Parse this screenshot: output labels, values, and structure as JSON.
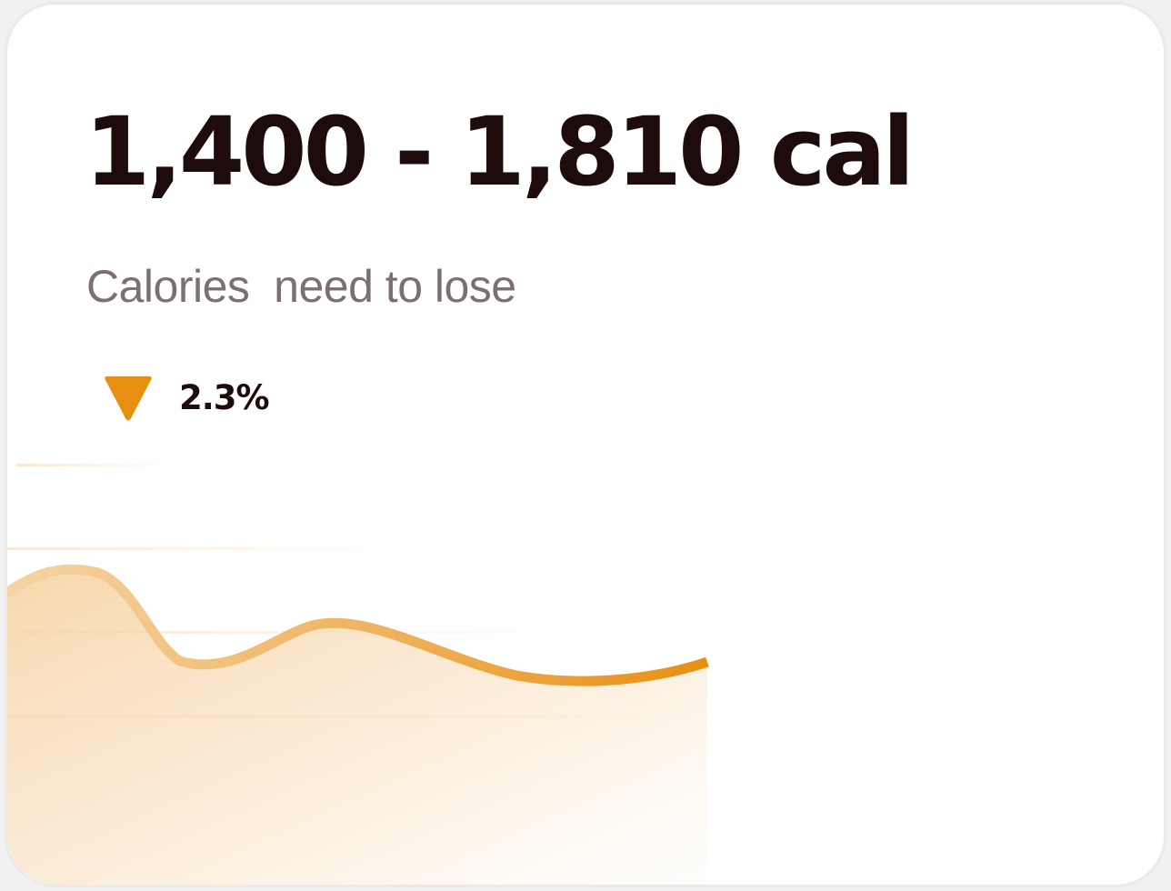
{
  "card": {
    "headline": "1,400 - 1,810 cal",
    "subtitle": "Calories  need to lose",
    "trend": {
      "direction": "down",
      "icon": "triangle-down-icon",
      "value": "2.3%"
    }
  },
  "chart_data": {
    "type": "area",
    "x": [
      0,
      1,
      2,
      3,
      4,
      5,
      6
    ],
    "values": [
      0.45,
      0.85,
      0.25,
      0.7,
      0.38,
      0.22,
      0.45
    ],
    "grid": true,
    "legend": "none"
  },
  "colors": {
    "text_primary": "#1e0c0c",
    "text_secondary": "#7b6f6f",
    "accent": "#e88f11",
    "card_background": "#ffffff",
    "card_border": "#ebeaea"
  }
}
